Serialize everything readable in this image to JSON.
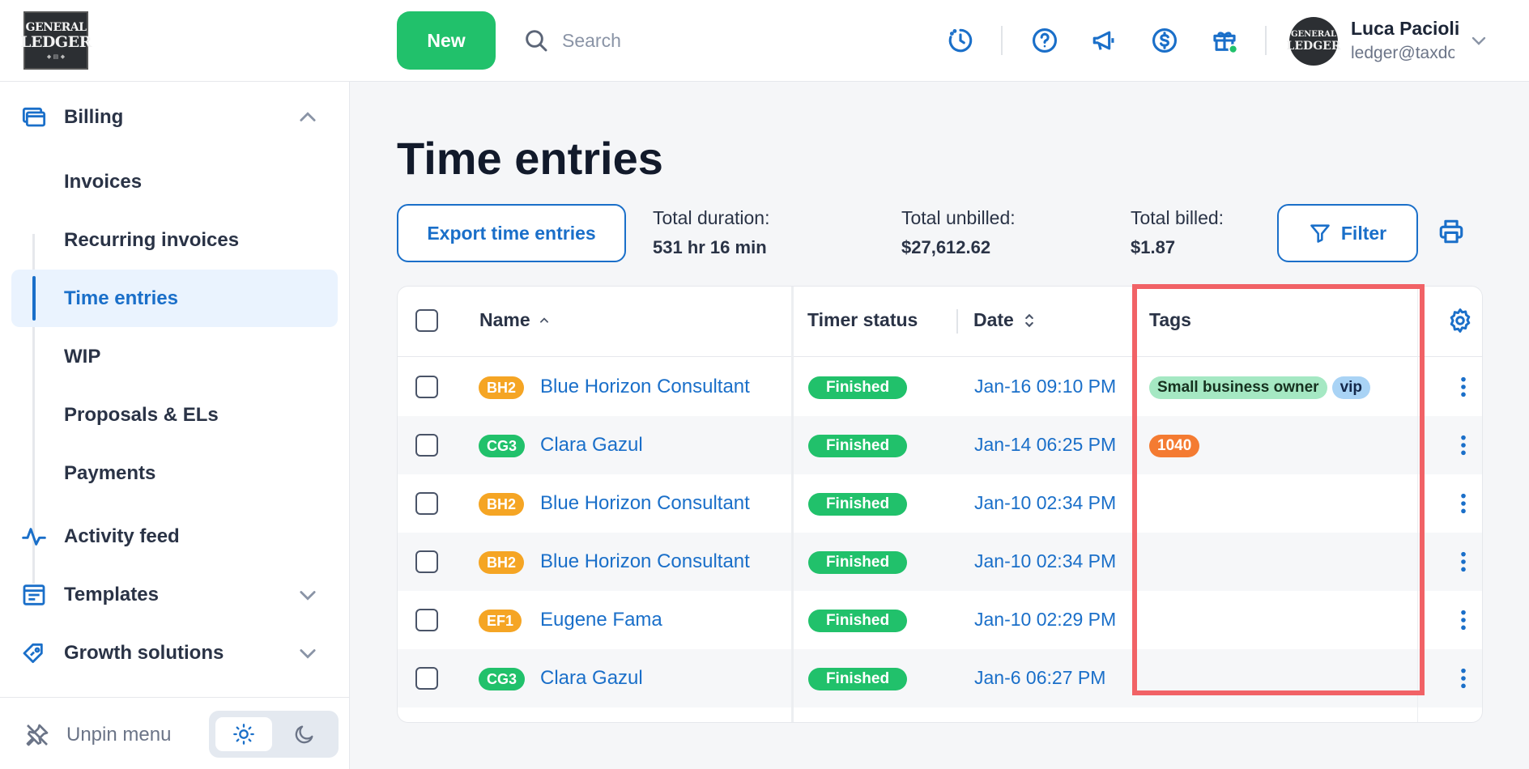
{
  "header": {
    "logo": {
      "line1": "GENERAL",
      "line2": "LEDGER"
    },
    "new_label": "New",
    "search_placeholder": "Search",
    "icons": [
      "timer-icon",
      "help-icon",
      "announcement-icon",
      "billing-dollar-icon",
      "gift-icon"
    ],
    "user": {
      "name": "Luca Pacioli",
      "email": "ledger@taxdo"
    }
  },
  "sidebar": {
    "billing": {
      "label": "Billing",
      "expanded": true
    },
    "billing_items": [
      {
        "label": "Invoices",
        "active": false
      },
      {
        "label": "Recurring invoices",
        "active": false
      },
      {
        "label": "Time entries",
        "active": true
      },
      {
        "label": "WIP",
        "active": false
      },
      {
        "label": "Proposals & ELs",
        "active": false
      },
      {
        "label": "Payments",
        "active": false
      }
    ],
    "activity": {
      "label": "Activity feed"
    },
    "templates": {
      "label": "Templates"
    },
    "growth": {
      "label": "Growth solutions"
    },
    "unpin_label": "Unpin menu"
  },
  "page": {
    "title": "Time entries",
    "export_label": "Export time entries",
    "stats": [
      {
        "label": "Total duration:",
        "value": "531 hr 16 min"
      },
      {
        "label": "Total unbilled:",
        "value": "$27,612.62"
      },
      {
        "label": "Total billed:",
        "value": "$1.87"
      }
    ],
    "filter_label": "Filter"
  },
  "table": {
    "columns": {
      "name": "Name",
      "timer_status": "Timer status",
      "date": "Date",
      "tags": "Tags"
    },
    "rows": [
      {
        "initials": "BH2",
        "badge_color": "#f5a524",
        "name": "Blue Horizon Consultant",
        "status": "Finished",
        "date": "Jan-16 09:10 PM",
        "tags": [
          {
            "label": "Small business owner",
            "bg": "#a5e8c3",
            "fg": "#16311f"
          },
          {
            "label": "vip",
            "bg": "#a9d3f5",
            "fg": "#14284a"
          }
        ]
      },
      {
        "initials": "CG3",
        "badge_color": "#21c16b",
        "name": "Clara Gazul",
        "status": "Finished",
        "date": "Jan-14 06:25 PM",
        "tags": [
          {
            "label": "1040",
            "bg": "#f47b32",
            "fg": "#ffffff"
          }
        ]
      },
      {
        "initials": "BH2",
        "badge_color": "#f5a524",
        "name": "Blue Horizon Consultant",
        "status": "Finished",
        "date": "Jan-10 02:34 PM",
        "tags": []
      },
      {
        "initials": "BH2",
        "badge_color": "#f5a524",
        "name": "Blue Horizon Consultant",
        "status": "Finished",
        "date": "Jan-10 02:34 PM",
        "tags": []
      },
      {
        "initials": "EF1",
        "badge_color": "#f5a524",
        "name": "Eugene Fama",
        "status": "Finished",
        "date": "Jan-10 02:29 PM",
        "tags": []
      },
      {
        "initials": "CG3",
        "badge_color": "#21c16b",
        "name": "Clara Gazul",
        "status": "Finished",
        "date": "Jan-6 06:27 PM",
        "tags": []
      }
    ]
  },
  "colors": {
    "accent": "#1a6fc9",
    "success": "#21c16b",
    "highlight": "#f16266"
  }
}
